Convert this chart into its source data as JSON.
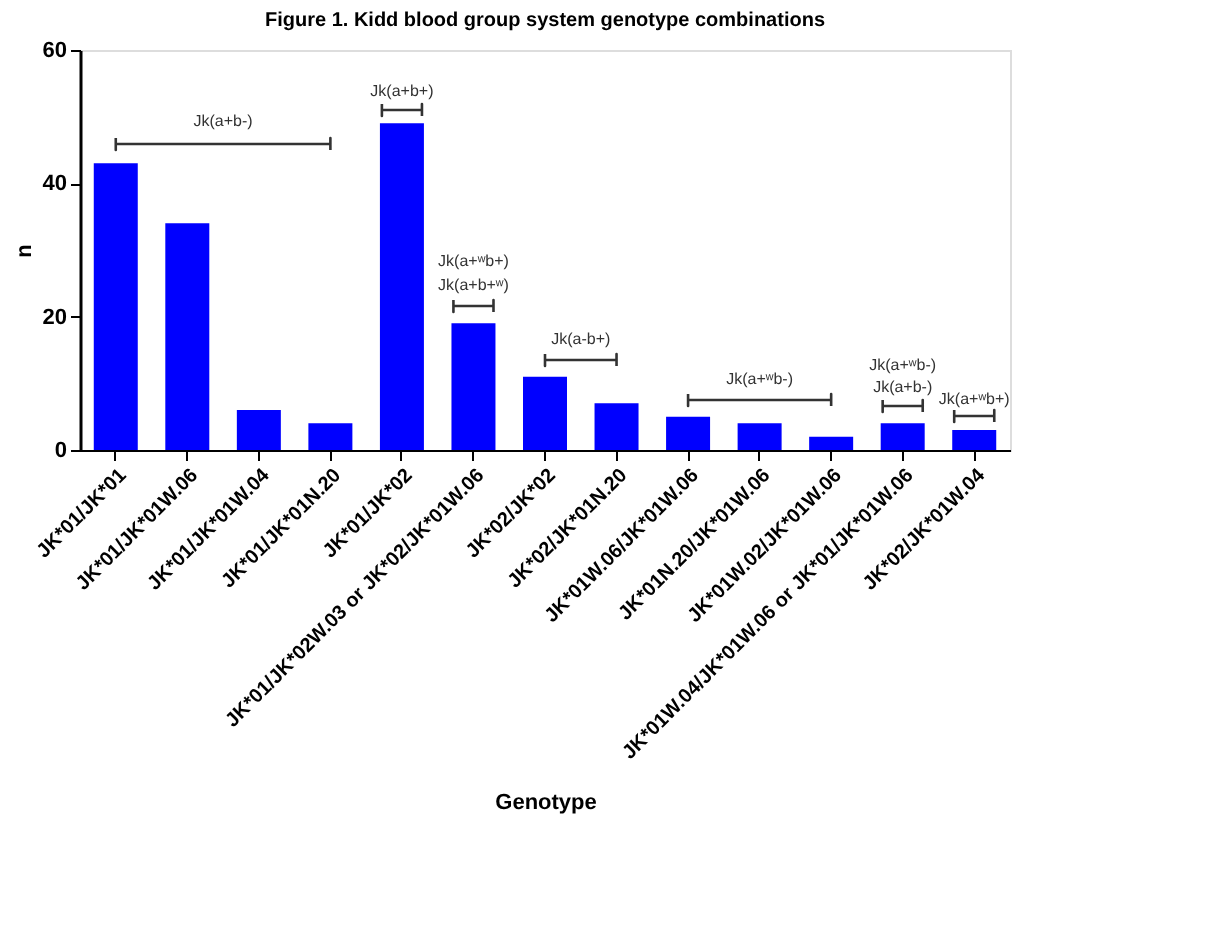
{
  "chart_data": {
    "type": "bar",
    "title": "Figure 1. Kidd blood group system genotype combinations",
    "xlabel": "Genotype",
    "ylabel": "n",
    "categories": [
      "JK*01/JK*01",
      "JK*01/JK*01W.06",
      "JK*01/JK*01W.04",
      "JK*01/JK*01N.20",
      "JK*01/JK*02",
      "JK*01/JK*02W.03 or JK*02/JK*01W.06",
      "JK*02/JK*02",
      "JK*02/JK*01N.20",
      "JK*01W.06/JK*01W.06",
      "JK*01N.20/JK*01W.06",
      "JK*01W.02/JK*01W.06",
      "JK*01W.04/JK*01W.06 or JK*01/JK*01W.06",
      "JK*02/JK*01W.04"
    ],
    "values": [
      43,
      34,
      6,
      4,
      49,
      19,
      11,
      7,
      5,
      4,
      2,
      4,
      3
    ],
    "color": "#0000ff",
    "ylim": [
      0,
      60
    ],
    "yticks": [
      0,
      20,
      40,
      60
    ],
    "grid": false,
    "annotations": [
      "Jk(a+b-)",
      "Jk(a+b+)",
      "Jk(a+ʷb+)",
      "Jk(a+b+ʷ)",
      "Jk(a-b+)",
      "Jk(a+ʷb-)",
      "Jk(a+ʷb-)",
      "Jk(a+b-)",
      "Jk(a+ʷb+)"
    ]
  }
}
